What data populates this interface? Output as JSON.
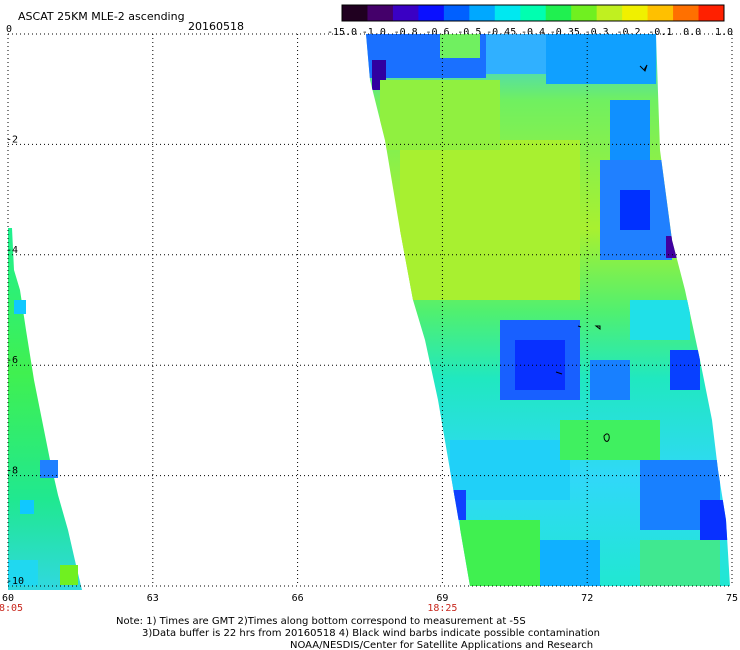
{
  "header": {
    "title": "ASCAT 25KM MLE-2 ascending",
    "date": "20160518"
  },
  "colorbar": {
    "labels": [
      "-15.0",
      "-1.0",
      "-0.8",
      "-0.6",
      "-0.5",
      "-0.45",
      "-0.4",
      "-0.35",
      "-0.3",
      "-0.2",
      "-0.1",
      "0.0",
      "1.0"
    ],
    "colors": [
      "#200020",
      "#44006a",
      "#3a00c4",
      "#0a10ff",
      "#0060ff",
      "#00a8ff",
      "#00e8f0",
      "#00ffb0",
      "#20f050",
      "#70f020",
      "#c0f020",
      "#f0f000",
      "#ffc000",
      "#ff7000",
      "#ff2000"
    ]
  },
  "axes": {
    "x_ticks": [
      "60",
      "63",
      "66",
      "69",
      "72",
      "75"
    ],
    "y_ticks": [
      "0",
      "-2",
      "-4",
      "-6",
      "-8",
      "-10"
    ],
    "time_labels": [
      {
        "lon": "60",
        "text": "18:05"
      },
      {
        "lon": "69",
        "text": "18:25"
      }
    ]
  },
  "notes": {
    "line1": "Note: 1) Times are GMT 2)Times along bottom correspond to measurement at -5S",
    "line2": "3)Data buffer is 22 hrs from 20160518 4) Black wind barbs indicate possible contamination",
    "line3": "NOAA/NESDIS/Center for Satellite Applications and Research"
  }
}
